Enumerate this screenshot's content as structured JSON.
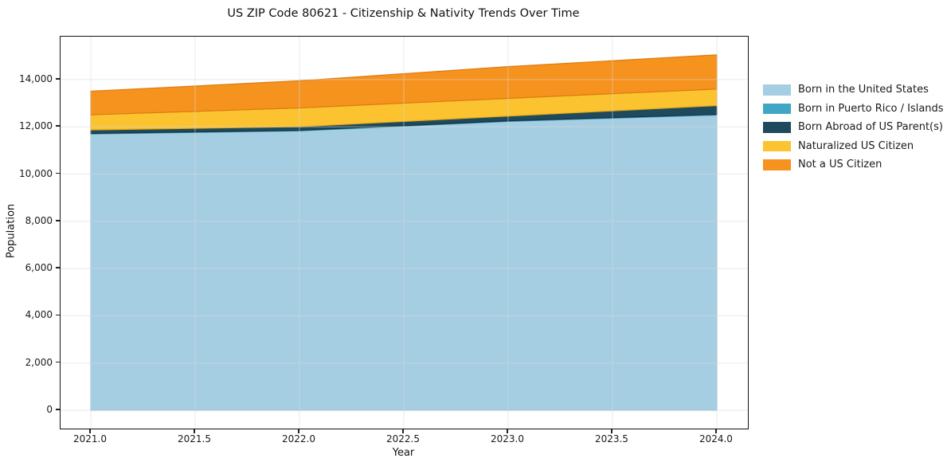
{
  "figure": {
    "background": "#ffffff"
  },
  "chart_data": {
    "type": "area",
    "stacked": true,
    "title": "US ZIP Code 80621 - Citizenship & Nativity Trends Over Time",
    "xlabel": "Year",
    "ylabel": "Population",
    "x": [
      2021,
      2022,
      2023,
      2024
    ],
    "series": [
      {
        "name": "Born in the United States",
        "color": "#a6cee3",
        "edge": "#8fbcd6",
        "values": [
          11700,
          11830,
          12230,
          12500
        ]
      },
      {
        "name": "Born in Puerto Rico / Islands",
        "color": "#41a6c4",
        "edge": "#3692ad",
        "values": [
          20,
          20,
          25,
          30
        ]
      },
      {
        "name": "Born Abroad of US Parent(s)",
        "color": "#1f4a5e",
        "edge": "#163645",
        "values": [
          150,
          155,
          200,
          370
        ]
      },
      {
        "name": "Naturalized US Citizen",
        "color": "#fcc330",
        "edge": "#e2a918",
        "values": [
          640,
          795,
          750,
          700
        ]
      },
      {
        "name": "Not a US Citizen",
        "color": "#f6921e",
        "edge": "#db7d10",
        "values": [
          1000,
          1150,
          1345,
          1450
        ]
      }
    ],
    "stack_totals": [
      13510,
      13950,
      14550,
      15050
    ],
    "xticks": {
      "values": [
        2021.0,
        2021.5,
        2022.0,
        2022.5,
        2023.0,
        2023.5,
        2024.0
      ],
      "labels": [
        "2021.0",
        "2021.5",
        "2022.0",
        "2022.5",
        "2023.0",
        "2023.5",
        "2024.0"
      ]
    },
    "yticks": {
      "values": [
        0,
        2000,
        4000,
        6000,
        8000,
        10000,
        12000,
        14000
      ],
      "labels": [
        "0",
        "2,000",
        "4,000",
        "6,000",
        "8,000",
        "10,000",
        "12,000",
        "14,000"
      ]
    },
    "xlim": [
      2020.855,
      2024.149
    ],
    "ylim": [
      -776,
      15819
    ],
    "grid": true,
    "grid_color": "#d9d9d9",
    "legend_position": "right-outside"
  }
}
